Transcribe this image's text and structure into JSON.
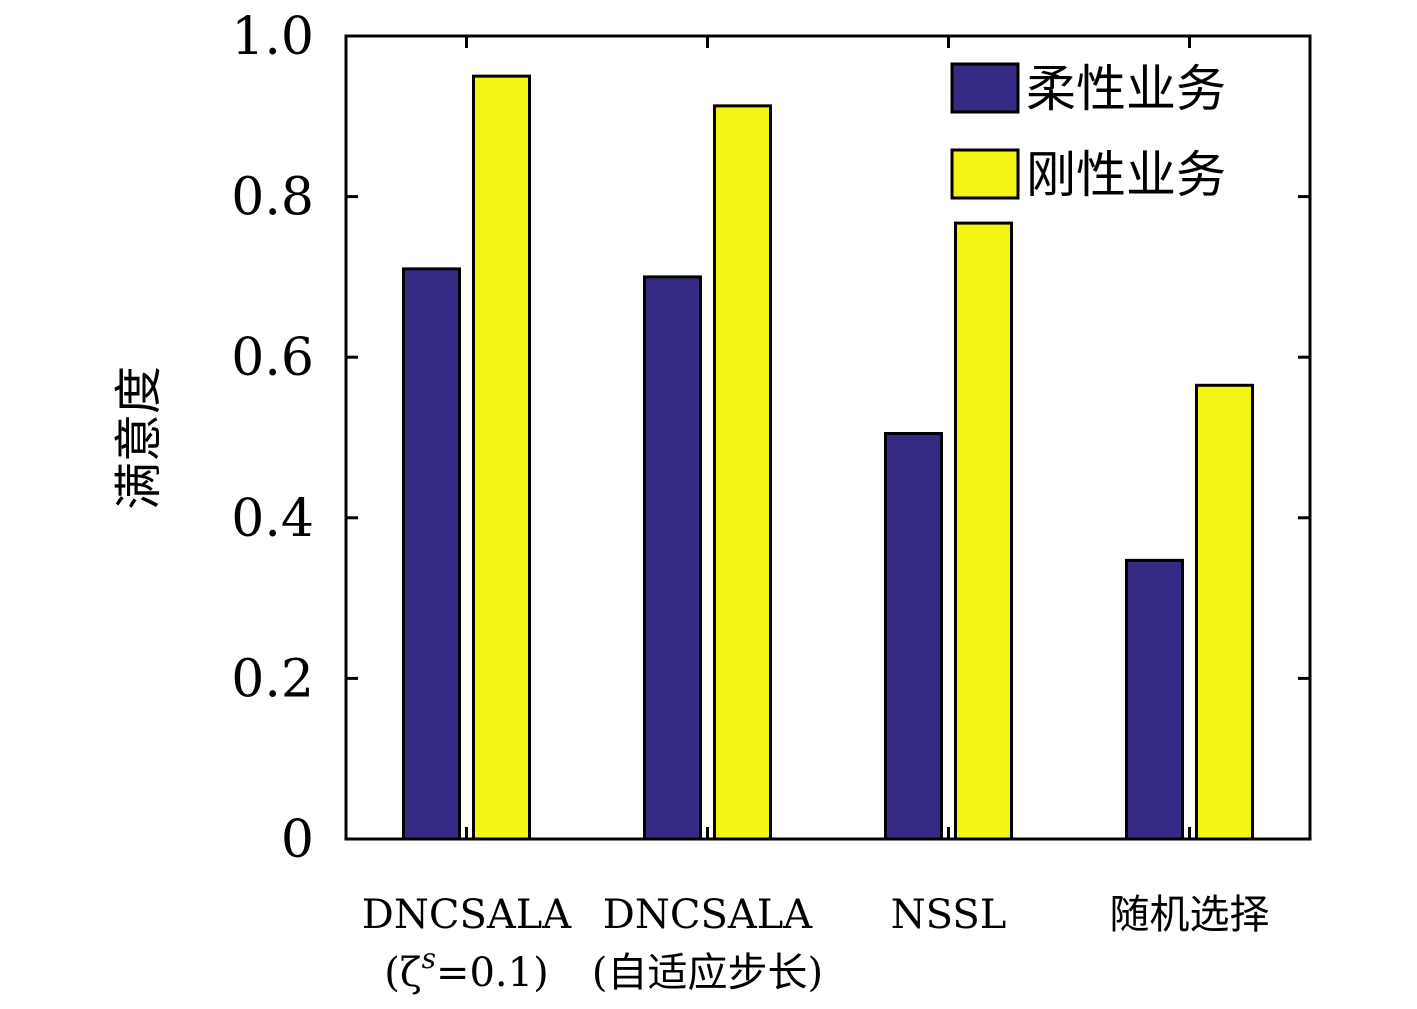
{
  "chart_data": {
    "type": "bar",
    "ylabel": "满意度",
    "ylim": [
      0,
      1.0
    ],
    "yticks": [
      "0",
      "0.2",
      "0.4",
      "0.6",
      "0.8",
      "1.0"
    ],
    "categories": [
      [
        "DNCSALA",
        "(ζ^s=0.1)"
      ],
      [
        "DNCSALA",
        "(自适应步长)"
      ],
      [
        "NSSL"
      ],
      [
        "随机选择"
      ]
    ],
    "series": [
      {
        "name": "柔性业务",
        "color": "#352b84",
        "values": [
          0.71,
          0.7,
          0.505,
          0.347
        ]
      },
      {
        "name": "刚性业务",
        "color": "#f5f513",
        "values": [
          0.95,
          0.913,
          0.767,
          0.565
        ]
      }
    ],
    "legend_position": "top-right",
    "grid": false
  }
}
